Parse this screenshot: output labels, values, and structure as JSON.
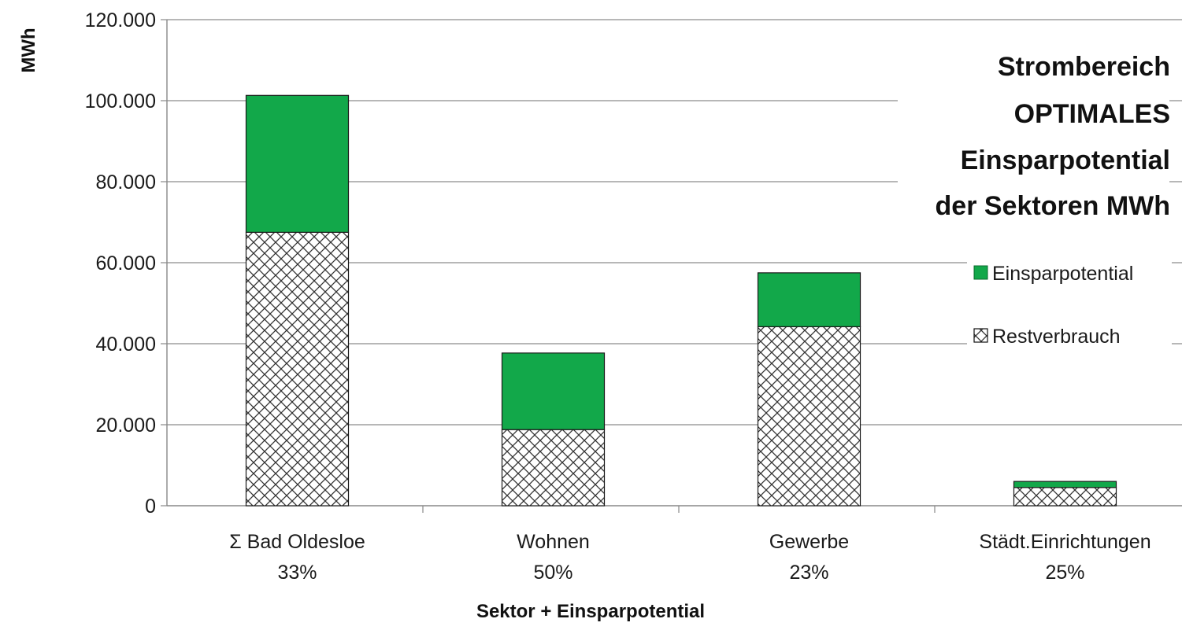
{
  "chart_data": {
    "type": "bar",
    "stacked": true,
    "title": [
      "Strombereich",
      "OPTIMALES",
      "Einsparpotential",
      "der Sektoren MWh"
    ],
    "ylabel": "MWh",
    "xlabel": "Sektor + Einsparpotential",
    "ylim": [
      0,
      120000
    ],
    "y_ticks": [
      0,
      20000,
      40000,
      60000,
      80000,
      100000,
      120000
    ],
    "y_tick_labels": [
      "0",
      "20.000",
      "40.000",
      "60.000",
      "80.000",
      "100.000",
      "120.000"
    ],
    "categories": [
      "Σ Bad Oldesloe",
      "Wohnen",
      "Gewerbe",
      "Städt.Einrichtungen"
    ],
    "category_percents": [
      "33%",
      "50%",
      "23%",
      "25%"
    ],
    "series": [
      {
        "name": "Restverbrauch",
        "values": [
          67500,
          18800,
          44200,
          4500
        ],
        "color": "#ffffff",
        "pattern": "crosshatch"
      },
      {
        "name": "Einsparpotential",
        "values": [
          33800,
          18900,
          13300,
          1500
        ],
        "color": "#12a84a"
      }
    ],
    "legend": {
      "placement": "right",
      "order": [
        "Einsparpotential",
        "Restverbrauch"
      ]
    },
    "grid": true
  }
}
